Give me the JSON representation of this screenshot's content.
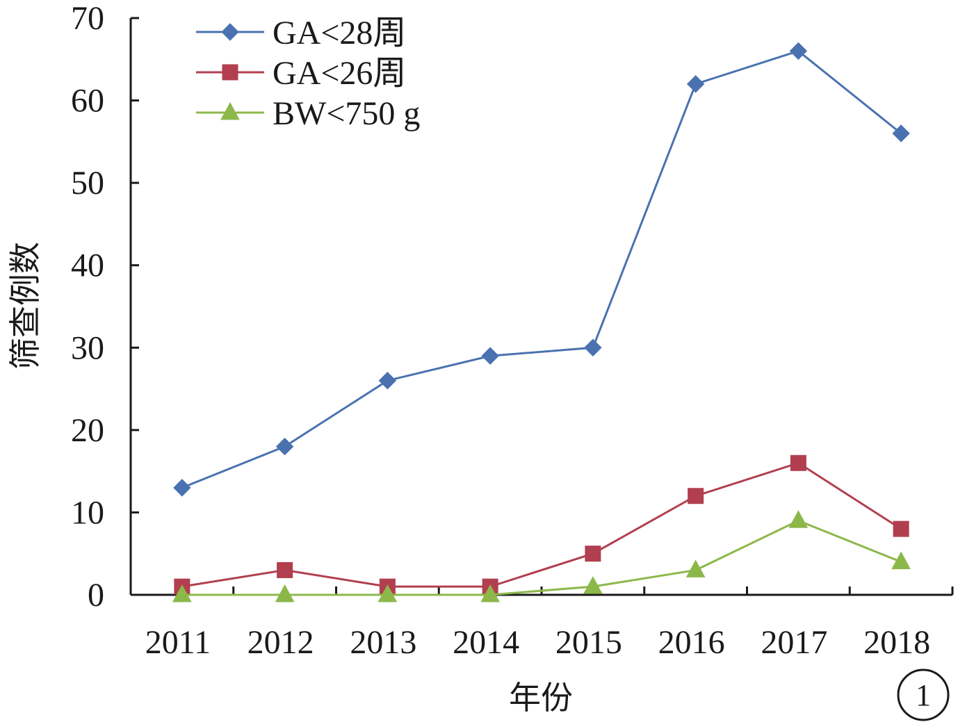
{
  "chart_data": {
    "type": "line",
    "title": "",
    "xlabel": "年份",
    "ylabel": "筛查例数",
    "categories": [
      "2011",
      "2012",
      "2013",
      "2014",
      "2015",
      "2016",
      "2017",
      "2018"
    ],
    "ylim": [
      0,
      70
    ],
    "yticks": [
      0,
      10,
      20,
      30,
      40,
      50,
      60,
      70
    ],
    "grid": false,
    "legend_position": "top-left",
    "series": [
      {
        "name": "GA<28周",
        "values": [
          13,
          18,
          26,
          29,
          30,
          62,
          66,
          56
        ],
        "color": "#4a72b0",
        "marker": "diamond"
      },
      {
        "name": "GA<26周",
        "values": [
          1,
          3,
          1,
          1,
          5,
          12,
          16,
          8
        ],
        "color": "#b13f4f",
        "marker": "square"
      },
      {
        "name": "BW<750 g",
        "values": [
          0,
          0,
          0,
          0,
          1,
          3,
          9,
          4
        ],
        "color": "#8cb84a",
        "marker": "triangle"
      }
    ],
    "panel_label": "1"
  }
}
